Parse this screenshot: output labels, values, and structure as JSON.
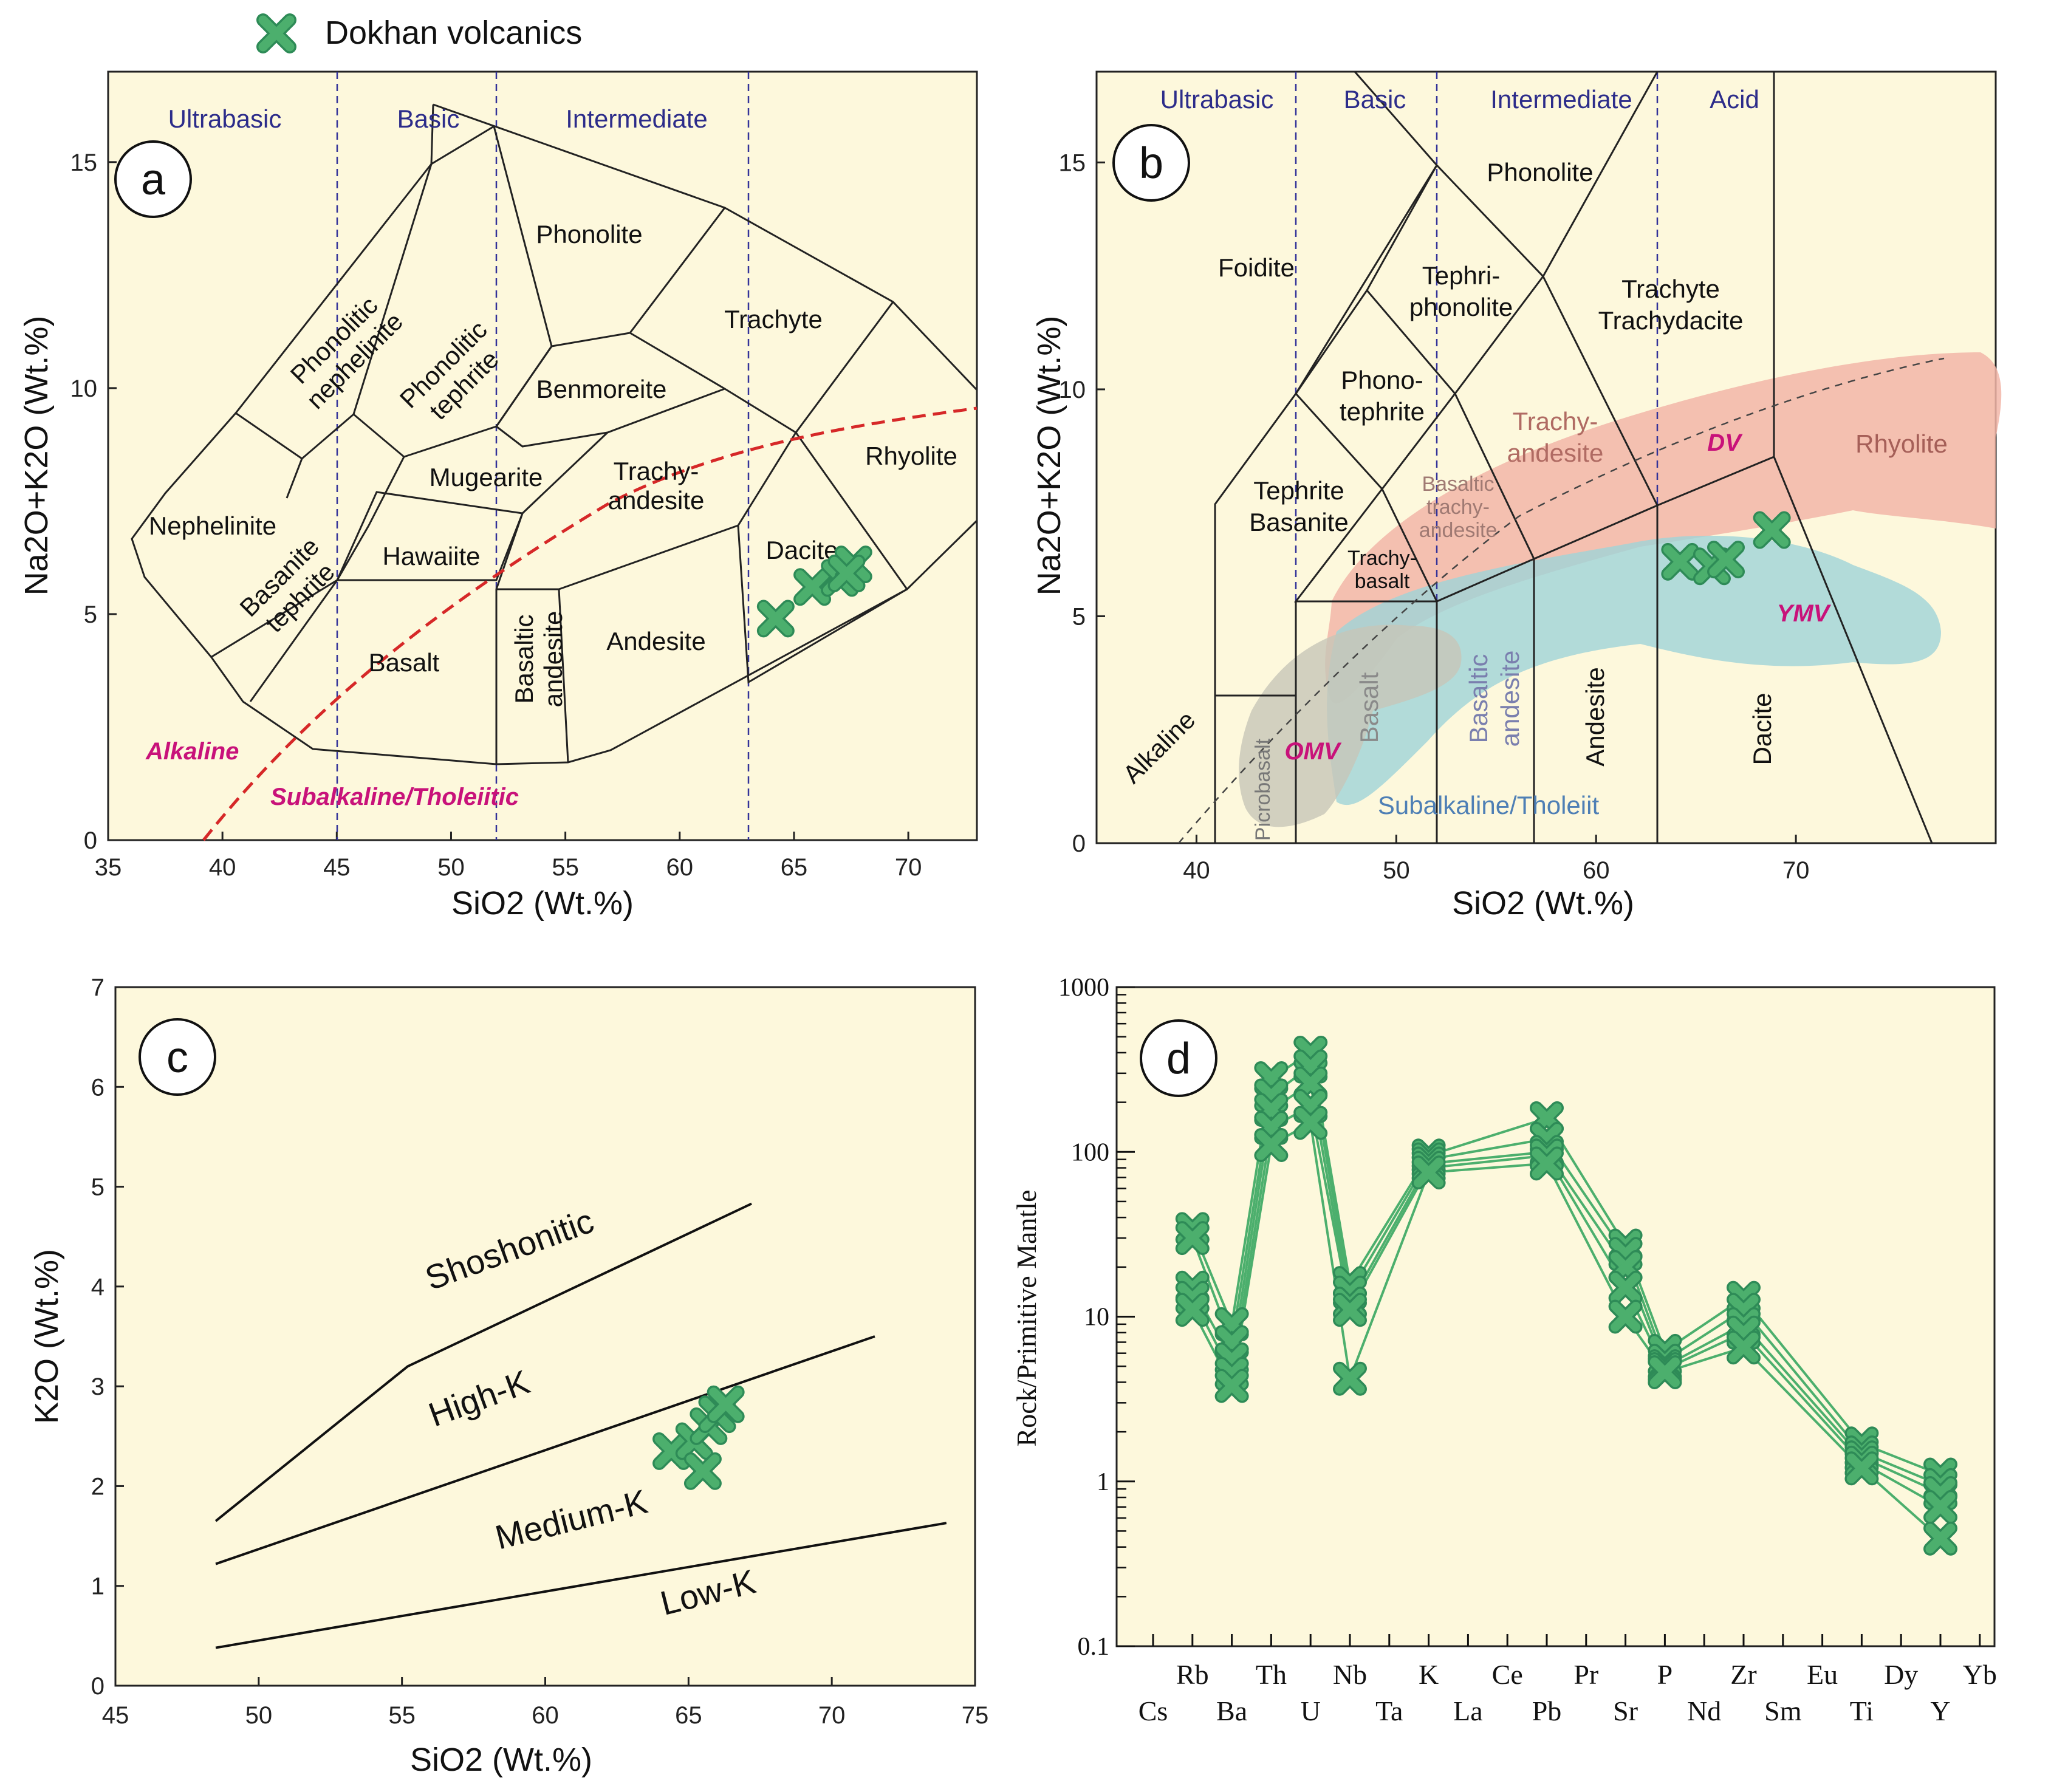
{
  "legend": {
    "label": "Dokhan volcanics",
    "marker": "x-cross",
    "color": "#4caf6d"
  },
  "colors": {
    "panel_bg": "#fdf8dc",
    "marker": "#4caf6d",
    "marker_dark": "#2e8b57",
    "alkaline_line": "#d62828",
    "dv": "#f2b6a8",
    "ymv": "#9fd3d8",
    "omv": "#c7c5b8"
  },
  "chart_data": [
    {
      "id": "a",
      "type": "scatter",
      "panel_letter": "a",
      "xlabel": "SiO2 (Wt.%)",
      "ylabel": "Na2O+K2O (Wt.%)",
      "xlim": [
        35,
        73
      ],
      "ylim": [
        0,
        17
      ],
      "xticks": [
        35,
        40,
        45,
        50,
        55,
        60,
        65,
        70
      ],
      "yticks": [
        0,
        5,
        10,
        15
      ],
      "groups": [
        "Ultrabasic",
        "Basic",
        "Intermediate"
      ],
      "fields": [
        "Phonolite",
        "Phonolitic nephelinite",
        "Phonolitic tephrite",
        "Trachyte",
        "Benmoreite",
        "Mugearite",
        "Trachy- andesite",
        "Rhyolite",
        "Nephelinite",
        "Basanite tephrite",
        "Hawaiite",
        "Dacite",
        "Basalt",
        "Basaltic andesite",
        "Andesite"
      ],
      "series_labels": [
        "Alkaline",
        "Subalkaline/Tholeiitic"
      ],
      "points": [
        [
          64.2,
          4.9
        ],
        [
          65.8,
          5.6
        ],
        [
          67.0,
          5.8
        ],
        [
          67.6,
          6.1
        ],
        [
          67.3,
          5.9
        ]
      ]
    },
    {
      "id": "b",
      "type": "scatter",
      "panel_letter": "b",
      "xlabel": "SiO2 (Wt.%)",
      "ylabel": "Na2O+K2O (Wt.%)",
      "xlim": [
        35,
        80
      ],
      "ylim": [
        0,
        17
      ],
      "xticks": [
        40,
        50,
        60,
        70
      ],
      "yticks": [
        0,
        5,
        10,
        15
      ],
      "groups": [
        "Ultrabasic",
        "Basic",
        "Intermediate",
        "Acid"
      ],
      "fields": [
        "Phonolite",
        "Foidite",
        "Tephri- phonolite",
        "Trachyte Trachydacite",
        "Phono- tephrite",
        "Trachy- andesite",
        "Rhyolite",
        "Tephrite Basanite",
        "Basaltic trachy- andesite",
        "Trachy- basalt",
        "Basalt",
        "Basaltic andesite",
        "Andesite",
        "Dacite",
        "Picrobasalt",
        "Alkaline",
        "Subalkaline/Tholeiit"
      ],
      "field_groups": [
        "DV",
        "YMV",
        "OMV"
      ],
      "points": [
        [
          64.2,
          6.2
        ],
        [
          65.8,
          6.1
        ],
        [
          66.5,
          6.25
        ],
        [
          68.8,
          6.9
        ]
      ]
    },
    {
      "id": "c",
      "type": "scatter",
      "panel_letter": "c",
      "xlabel": "SiO2 (Wt.%)",
      "ylabel": "K2O (Wt.%)",
      "xlim": [
        45,
        75
      ],
      "ylim": [
        0,
        7
      ],
      "xticks": [
        45,
        50,
        55,
        60,
        65,
        70,
        75
      ],
      "yticks": [
        0,
        1,
        2,
        3,
        4,
        5,
        6,
        7
      ],
      "fields": [
        "Shoshonitic",
        "High-K",
        "Medium-K",
        "Low-K"
      ],
      "boundaries": [
        [
          [
            48.5,
            1.65
          ],
          [
            55.2,
            3.2
          ],
          [
            67.2,
            4.83
          ]
        ],
        [
          [
            48.5,
            1.22
          ],
          [
            71.5,
            3.5
          ]
        ],
        [
          [
            48.5,
            0.38
          ],
          [
            74.0,
            1.63
          ]
        ]
      ],
      "points": [
        [
          64.4,
          2.35
        ],
        [
          65.2,
          2.45
        ],
        [
          65.7,
          2.6
        ],
        [
          66.0,
          2.72
        ],
        [
          66.3,
          2.82
        ],
        [
          65.5,
          2.15
        ]
      ]
    },
    {
      "id": "d",
      "type": "line",
      "panel_letter": "d",
      "yscale": "log",
      "ylabel": "Rock/Primitive Mantle",
      "ylim": [
        0.1,
        1000
      ],
      "yticks": [
        0.1,
        1,
        10,
        100,
        1000
      ],
      "ytick_labels": [
        "0.1",
        "1",
        "10",
        "100",
        "1000"
      ],
      "categories_top": [
        "Rb",
        "Th",
        "Nb",
        "K",
        "Ce",
        "Pr",
        "P",
        "Zr",
        "Eu",
        "Dy",
        "Yb"
      ],
      "categories_bottom": [
        "Cs",
        "Ba",
        "U",
        "Ta",
        "La",
        "Pb",
        "Sr",
        "Nd",
        "Sm",
        "Ti",
        "Y"
      ],
      "categories_plotted": [
        "Rb",
        "Ba",
        "Th",
        "U",
        "Nb",
        "K",
        "Pb",
        "Sr",
        "P",
        "Zr",
        "Ti",
        "Y"
      ],
      "series": [
        {
          "name": "s1",
          "values": [
            34,
            9,
            280,
            400,
            16,
            95,
            160,
            27,
            6.2,
            13,
            1.7,
            1.1
          ]
        },
        {
          "name": "s2",
          "values": [
            30,
            7,
            220,
            330,
            14,
            90,
            120,
            24,
            5.4,
            11,
            1.5,
            0.95
          ]
        },
        {
          "name": "s3",
          "values": [
            15,
            5.5,
            180,
            260,
            12,
            85,
            100,
            20,
            5.0,
            9,
            1.4,
            0.85
          ]
        },
        {
          "name": "s4",
          "values": [
            13,
            4.5,
            140,
            190,
            11,
            80,
            95,
            15,
            4.8,
            8,
            1.3,
            0.7
          ]
        },
        {
          "name": "s5",
          "values": [
            11,
            3.8,
            110,
            150,
            4.2,
            75,
            85,
            10,
            4.6,
            6.5,
            1.2,
            0.45
          ]
        }
      ]
    }
  ]
}
